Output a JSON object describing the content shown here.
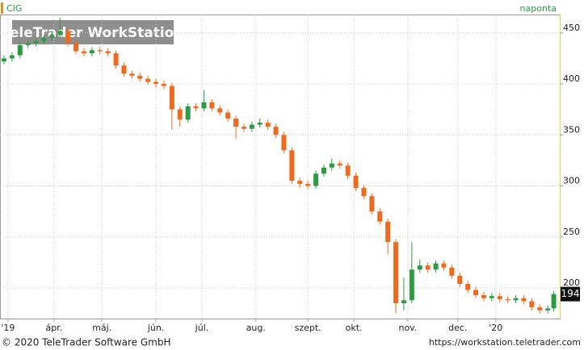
{
  "chart_data": {
    "type": "candlestick",
    "title": "CIG",
    "subtitle": "naponta",
    "watermark": "TeleTrader WorkStation",
    "footer_left": "© 2020 TeleTrader Software GmbH",
    "footer_right": "https://workstation.teletrader.com",
    "up_color": "#2e9a45",
    "down_color": "#ee6a1e",
    "last_value": 194,
    "xlim": [
      0,
      280
    ],
    "ylim": [
      170,
      468
    ],
    "yticks": [
      200,
      250,
      300,
      350,
      400,
      450
    ],
    "xticks": [
      {
        "value": 4,
        "label": "'19"
      },
      {
        "value": 27,
        "label": "ápr."
      },
      {
        "value": 51,
        "label": "máj."
      },
      {
        "value": 78,
        "label": "jún."
      },
      {
        "value": 101,
        "label": "júl."
      },
      {
        "value": 128,
        "label": "aug."
      },
      {
        "value": 154,
        "label": "szept."
      },
      {
        "value": 177,
        "label": "okt."
      },
      {
        "value": 204,
        "label": "nov."
      },
      {
        "value": 229,
        "label": "dec."
      },
      {
        "value": 248,
        "label": "'20"
      }
    ],
    "grid": true,
    "x": [
      2,
      6,
      10,
      14,
      18,
      22,
      26,
      30,
      34,
      38,
      42,
      46,
      50,
      54,
      58,
      62,
      66,
      70,
      74,
      78,
      82,
      86,
      90,
      94,
      98,
      102,
      106,
      110,
      114,
      118,
      122,
      126,
      130,
      134,
      138,
      142,
      146,
      150,
      154,
      158,
      162,
      166,
      170,
      174,
      178,
      182,
      186,
      190,
      194,
      198,
      202,
      206,
      210,
      214,
      218,
      222,
      226,
      230,
      234,
      238,
      242,
      246,
      250,
      254,
      258,
      262,
      266,
      270,
      274,
      277
    ],
    "open": [
      422,
      425,
      428,
      438,
      440,
      442,
      445,
      448,
      452,
      440,
      432,
      430,
      433,
      432,
      430,
      418,
      410,
      408,
      405,
      402,
      400,
      398,
      375,
      365,
      378,
      376,
      382,
      376,
      372,
      366,
      358,
      356,
      360,
      362,
      358,
      350,
      335,
      305,
      302,
      300,
      312,
      318,
      322,
      320,
      310,
      298,
      290,
      275,
      265,
      245,
      185,
      188,
      218,
      222,
      218,
      224,
      220,
      212,
      204,
      198,
      193,
      190,
      192,
      189,
      188,
      190,
      187,
      181,
      178,
      180
    ],
    "high": [
      428,
      431,
      441,
      443,
      445,
      448,
      451,
      465,
      455,
      443,
      435,
      436,
      436,
      435,
      433,
      421,
      413,
      411,
      408,
      405,
      403,
      401,
      378,
      381,
      381,
      394,
      385,
      379,
      375,
      369,
      361,
      363,
      366,
      365,
      361,
      353,
      338,
      308,
      305,
      315,
      321,
      327,
      325,
      323,
      313,
      301,
      293,
      278,
      268,
      248,
      210,
      245,
      228,
      225,
      227,
      227,
      223,
      215,
      207,
      201,
      196,
      195,
      195,
      192,
      193,
      193,
      190,
      184,
      183,
      197
    ],
    "low": [
      419,
      422,
      425,
      435,
      437,
      439,
      442,
      445,
      437,
      429,
      427,
      427,
      429,
      427,
      415,
      407,
      405,
      402,
      399,
      397,
      395,
      355,
      358,
      362,
      373,
      373,
      373,
      369,
      363,
      346,
      353,
      353,
      357,
      355,
      347,
      332,
      302,
      298,
      297,
      297,
      309,
      315,
      317,
      307,
      295,
      287,
      272,
      262,
      233,
      175,
      178,
      185,
      215,
      215,
      215,
      217,
      209,
      201,
      195,
      190,
      187,
      187,
      186,
      185,
      185,
      184,
      178,
      175,
      175,
      177
    ],
    "close": [
      425,
      428,
      438,
      440,
      442,
      445,
      448,
      452,
      440,
      432,
      430,
      433,
      432,
      430,
      418,
      410,
      408,
      405,
      402,
      400,
      398,
      375,
      365,
      378,
      376,
      382,
      376,
      372,
      366,
      358,
      356,
      360,
      362,
      358,
      350,
      335,
      305,
      302,
      300,
      312,
      318,
      322,
      320,
      310,
      298,
      290,
      275,
      265,
      245,
      185,
      188,
      218,
      222,
      218,
      224,
      220,
      212,
      204,
      198,
      193,
      190,
      192,
      189,
      188,
      190,
      187,
      181,
      178,
      180,
      194
    ]
  }
}
